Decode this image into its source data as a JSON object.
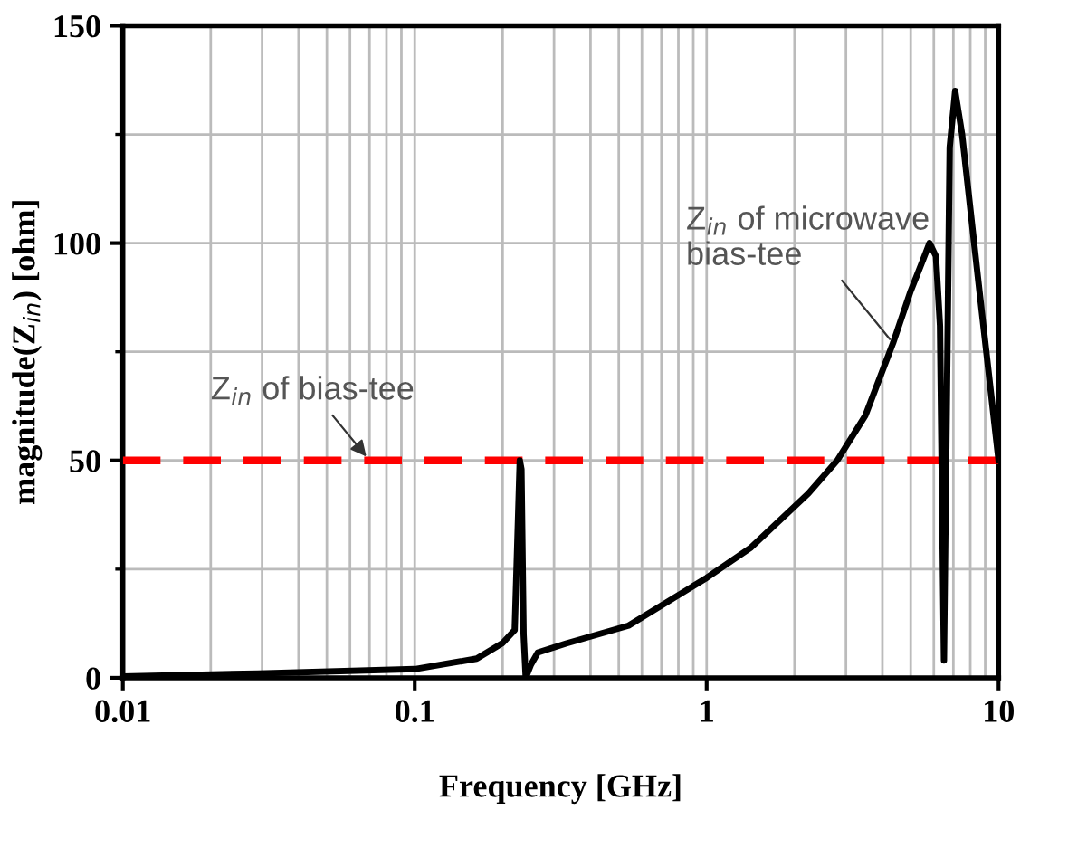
{
  "chart_data": {
    "type": "line",
    "xlabel": "Frequency [GHz]",
    "ylabel": "magnitude(Z$_{in}$) [ohm]",
    "log": "x",
    "xlim": [
      0.01,
      10
    ],
    "xticks": [
      {
        "value": 0.01,
        "label": "0.01"
      },
      {
        "value": 0.1,
        "label": "0.1"
      },
      {
        "value": 1,
        "label": "1"
      },
      {
        "value": 10,
        "label": "10"
      }
    ],
    "ylim": [
      0,
      150
    ],
    "yticks": [
      0,
      50,
      100,
      150
    ],
    "grid": true,
    "legend": false,
    "marker": "none",
    "line_style": "solid",
    "series": [
      {
        "color": "#000000",
        "x": [
          0.01,
          0.029,
          0.1,
          0.163,
          0.2,
          0.22,
          0.229,
          0.232,
          0.236,
          0.24,
          0.25,
          0.264,
          0.33,
          0.54,
          1,
          1.42,
          2.23,
          2.8,
          3.5,
          4.35,
          5,
          5.5,
          5.8,
          6.1,
          6.3,
          6.5,
          6.8,
          7.1,
          7.5,
          8.5,
          10
        ],
        "values": [
          0.3,
          1,
          2,
          4.4,
          8,
          11,
          50,
          48,
          10,
          0,
          3,
          5.8,
          7.9,
          12,
          23,
          30,
          42.4,
          50,
          60.4,
          77,
          89,
          96,
          100,
          97,
          81,
          4,
          122,
          135,
          125,
          92,
          50
        ]
      }
    ],
    "ref_lines": [
      {
        "axis": "y",
        "value": 50,
        "label": "Z$_{in}$ of bias-tee",
        "color": "#ff0000",
        "line_style": "dashed"
      }
    ],
    "annotations": [
      {
        "text": "Z$_{in}$ of microwave\nbias-tee",
        "x": 4.35,
        "y": 77
      }
    ]
  }
}
